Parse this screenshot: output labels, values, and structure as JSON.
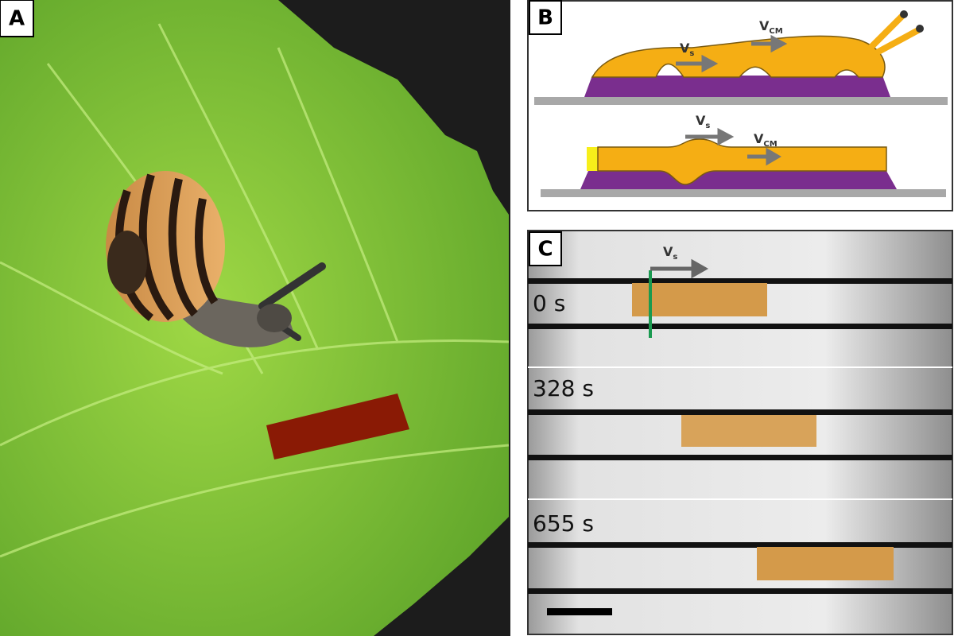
{
  "panels": {
    "a": {
      "label": "A"
    },
    "b": {
      "label": "B",
      "top": {
        "vs": {
          "main": "V",
          "sub": "s"
        },
        "vcm": {
          "main": "V",
          "sub": "CM"
        }
      },
      "bottom": {
        "vs": {
          "main": "V",
          "sub": "s"
        },
        "vcm": {
          "main": "V",
          "sub": "CM"
        }
      }
    },
    "c": {
      "label": "C",
      "vs": {
        "main": "V",
        "sub": "s"
      },
      "times": [
        "0 s",
        "328 s",
        "655 s"
      ]
    }
  }
}
